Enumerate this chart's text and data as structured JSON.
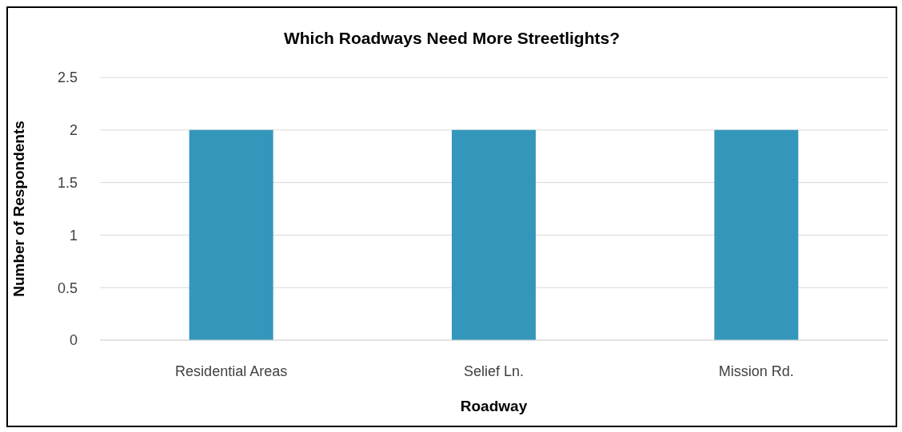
{
  "chart_data": {
    "type": "bar",
    "title": "Which Roadways Need More Streetlights?",
    "xlabel": "Roadway",
    "ylabel": "Number of Respondents",
    "categories": [
      "Residential Areas",
      "Selief Ln.",
      "Mission Rd."
    ],
    "values": [
      2,
      2,
      2
    ],
    "color": "#3596bc",
    "ylim": [
      0,
      2.5
    ],
    "yticks": [
      0,
      0.5,
      1,
      1.5,
      2,
      2.5
    ],
    "grid": "y",
    "legend": false
  }
}
